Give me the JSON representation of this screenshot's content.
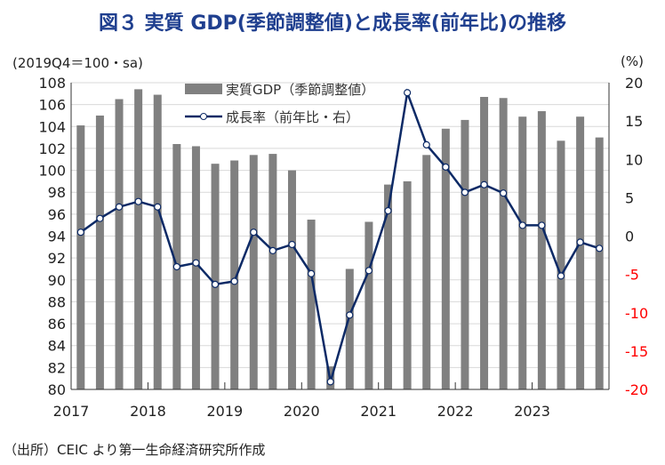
{
  "chart_data": {
    "type": "bar+line",
    "title": "図３ 実質 GDP(季節調整値)と成長率(前年比)の推移",
    "left_unit": "(2019Q4＝100・sa)",
    "right_unit": "(%)",
    "source": "（出所）CEIC より第一生命経済研究所作成",
    "x_labels": [
      "2017",
      "2018",
      "2019",
      "2020",
      "2021",
      "2022",
      "2023"
    ],
    "left_ylim": [
      80,
      108
    ],
    "left_ticks": [
      "80",
      "82",
      "84",
      "86",
      "88",
      "90",
      "92",
      "94",
      "96",
      "98",
      "100",
      "102",
      "104",
      "106",
      "108"
    ],
    "right_ylim": [
      -20,
      20
    ],
    "right_ticks": [
      "-20",
      "-15",
      "-10",
      "-5",
      "0",
      "5",
      "10",
      "15",
      "20"
    ],
    "negative_tick_color": "#ff0000",
    "series": [
      {
        "name": "実質GDP（季節調整値）",
        "type": "bar",
        "color": "#808080",
        "values": [
          104.1,
          105.0,
          106.5,
          107.4,
          106.9,
          102.4,
          102.2,
          100.6,
          100.9,
          101.4,
          101.5,
          100.0,
          95.5,
          82.1,
          91.0,
          95.3,
          98.7,
          99.0,
          101.4,
          103.8,
          104.6,
          106.7,
          106.6,
          104.9,
          105.4,
          102.7,
          104.9,
          103.0
        ]
      },
      {
        "name": "成長率（前年比・右）",
        "type": "line",
        "color": "#0d2a66",
        "values": [
          0.5,
          2.3,
          3.8,
          4.5,
          3.8,
          -4.0,
          -3.5,
          -6.3,
          -5.9,
          0.5,
          -1.9,
          -1.1,
          -4.9,
          -19.0,
          -10.3,
          -4.5,
          3.3,
          18.7,
          11.9,
          9.0,
          5.7,
          6.7,
          5.6,
          1.4,
          1.4,
          -5.2,
          -0.8,
          -1.6
        ]
      }
    ]
  }
}
